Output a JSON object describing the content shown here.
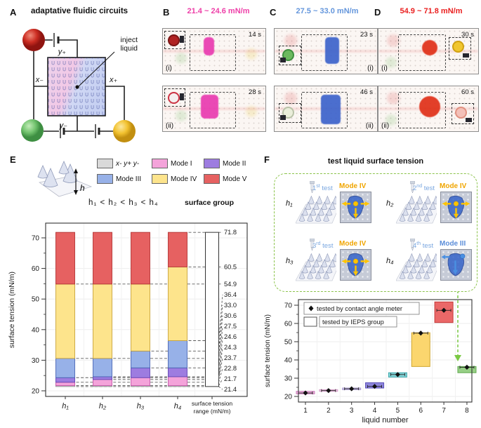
{
  "panel_a": {
    "label": "A",
    "title": "adaptative fluidic circuits",
    "inject_line1": "inject",
    "inject_line2": "liquid",
    "x_minus": "x₋",
    "x_plus": "x₊",
    "y_plus": "y₊",
    "y_minus": "y₋",
    "sphere_colors": {
      "top_left": "#c02e2e",
      "bottom_left": "#6abf69",
      "bottom_right": "#f0c228"
    }
  },
  "panels_bcd": [
    {
      "label": "B",
      "range": "21.4 ~ 24.6 mN/m",
      "color": "#ee3fa8",
      "liquid": "#e93bb0",
      "frames": [
        {
          "sub": "(i)",
          "time": "14 s",
          "drop": "#b02222",
          "ring": "#7a1515"
        },
        {
          "sub": "(ii)",
          "time": "28 s",
          "drop": "#f5efef",
          "ring": "#cc3344"
        }
      ]
    },
    {
      "label": "C",
      "range": "27.5 ~ 33.0 mN/m",
      "color": "#6496dc",
      "liquid": "#3d63cb",
      "frames": [
        {
          "sub": "(i)",
          "time": "23 s",
          "drop": "#6cb95e",
          "ring": "#3f8f3f"
        },
        {
          "sub": "(ii)",
          "time": "46 s",
          "drop": "#eaeeda",
          "ring": "#b9c2a8"
        }
      ]
    },
    {
      "label": "D",
      "range": "54.9 ~ 71.8 mN/m",
      "color": "#ea1f1f",
      "liquid": "#e03018",
      "frames": [
        {
          "sub": "(i)",
          "time": "30 s",
          "drop": "#f0c62e",
          "ring": "#d0a112"
        },
        {
          "sub": "(ii)",
          "time": "60 s",
          "drop": "#f3c0b8",
          "ring": "#e09080"
        }
      ]
    }
  ],
  "panel_e": {
    "label": "E",
    "inequality": "h₁ < h₂ < h₃ < h₄",
    "surface_group": "surface group",
    "height_label": "h"
  },
  "panel_f": {
    "label": "F",
    "title": "test liquid surface tension",
    "tests": [
      {
        "surface": "h₁",
        "num": "1",
        "suffix": "st",
        "word": "test",
        "mode": "Mode IV",
        "mode_color": "#f0a500",
        "variant": "IV"
      },
      {
        "surface": "h₂",
        "num": "2",
        "suffix": "nd",
        "word": "test",
        "mode": "Mode IV",
        "mode_color": "#f0a500",
        "variant": "IV"
      },
      {
        "surface": "h₃",
        "num": "3",
        "suffix": "rd",
        "word": "test",
        "mode": "Mode IV",
        "mode_color": "#f0a500",
        "variant": "IV"
      },
      {
        "surface": "h₄",
        "num": "4",
        "suffix": "th",
        "word": "test",
        "mode": "Mode III",
        "mode_color": "#5b8dd9",
        "variant": "III"
      }
    ]
  },
  "chart_data": [
    {
      "type": "bar",
      "title": "",
      "ylabel": "surface tension (mN/m)",
      "xlabel": "",
      "ylim": [
        18,
        75
      ],
      "yticks": [
        20,
        30,
        40,
        50,
        60,
        70
      ],
      "yticks_minor": [
        25,
        35,
        45,
        55,
        65
      ],
      "categories": [
        "h₁",
        "h₂",
        "h₃",
        "h₄"
      ],
      "modes": [
        {
          "name": "x- y+ y-",
          "color": "#d9d9d9",
          "border": "#8f8f8f",
          "italic": true
        },
        {
          "name": "Mode I",
          "color": "#f4a3da",
          "border": "#c457a8"
        },
        {
          "name": "Mode II",
          "color": "#9d7ce0",
          "border": "#6245b5"
        },
        {
          "name": "Mode III",
          "color": "#97b1e8",
          "border": "#4a66b5"
        },
        {
          "name": "Mode IV",
          "color": "#fde48c",
          "border": "#c9a43a"
        },
        {
          "name": "Mode V",
          "color": "#e66161",
          "border": "#b23535"
        }
      ],
      "bars": [
        {
          "category": "h₁",
          "boundaries": [
            21.4,
            21.7,
            22.8,
            24.3,
            30.6,
            54.9,
            71.8
          ]
        },
        {
          "category": "h₂",
          "boundaries": [
            21.4,
            21.7,
            23.7,
            24.6,
            30.6,
            54.9,
            71.8
          ]
        },
        {
          "category": "h₃",
          "boundaries": [
            21.4,
            21.7,
            24.3,
            27.5,
            33.0,
            54.9,
            71.8
          ]
        },
        {
          "category": "h₄",
          "boundaries": [
            21.4,
            21.7,
            24.6,
            27.5,
            36.4,
            60.5,
            71.8
          ]
        }
      ],
      "range_bar": {
        "min": 21.4,
        "max": 71.8,
        "caption_line1": "surface tension",
        "caption_line2": "range (mN/m)"
      },
      "range_labels": [
        {
          "value": 71.8,
          "from": 4
        },
        {
          "value": 60.5,
          "from": 4
        },
        {
          "value": 54.9,
          "from": 1
        },
        {
          "value": 36.4,
          "from": 4
        },
        {
          "value": 33.0,
          "from": 3
        },
        {
          "value": 30.6,
          "from": 1
        },
        {
          "value": 27.5,
          "from": 3
        },
        {
          "value": 24.6,
          "from": 2
        },
        {
          "value": 24.3,
          "from": 1
        },
        {
          "value": 23.7,
          "from": 2
        },
        {
          "value": 22.8,
          "from": 1
        },
        {
          "value": 21.7,
          "from": 1
        },
        {
          "value": 21.4,
          "from": 1
        }
      ],
      "legend_position": "top"
    },
    {
      "type": "box-scatter",
      "ylabel": "surface tension (mN/m)",
      "xlabel": "liquid number",
      "ylim": [
        17,
        73
      ],
      "yticks": [
        20,
        30,
        40,
        50,
        60,
        70
      ],
      "yticks_minor": [
        25,
        35,
        45,
        55,
        65
      ],
      "xticks": [
        1,
        2,
        3,
        4,
        5,
        6,
        7,
        8
      ],
      "legend": [
        "tested by contact angle meter",
        "tested by IEPS group"
      ],
      "liquids": [
        {
          "x": 1,
          "range": [
            21.4,
            22.8
          ],
          "point": 21.9,
          "color": "#efb3dd",
          "border": "#c87cba"
        },
        {
          "x": 2,
          "range": [
            22.8,
            23.7
          ],
          "point": 23.2,
          "color": "#f6d4ec",
          "border": "#d49cc8"
        },
        {
          "x": 3,
          "range": [
            23.7,
            24.6
          ],
          "point": 24.2,
          "color": "#d9cff0",
          "border": "#a898d0"
        },
        {
          "x": 4,
          "range": [
            24.6,
            27.5
          ],
          "point": 25.5,
          "color": "#8d85dc",
          "border": "#5a50b8"
        },
        {
          "x": 5,
          "range": [
            30.6,
            33.0
          ],
          "point": 32.0,
          "color": "#83d3d6",
          "border": "#3fa8ac"
        },
        {
          "x": 6,
          "range": [
            36.4,
            54.9
          ],
          "point": 54.7,
          "color": "#fbd66e",
          "border": "#d0a52e"
        },
        {
          "x": 7,
          "range": [
            60.5,
            71.8
          ],
          "point": 67.2,
          "color": "#ea6868",
          "border": "#c23a3a"
        },
        {
          "x": 8,
          "range": [
            33.0,
            36.4
          ],
          "point": 36.0,
          "color": "#97cf86",
          "border": "#5fa84e"
        }
      ],
      "arrow": {
        "color": "#7ac943",
        "points_to_liquid": 8
      }
    }
  ]
}
